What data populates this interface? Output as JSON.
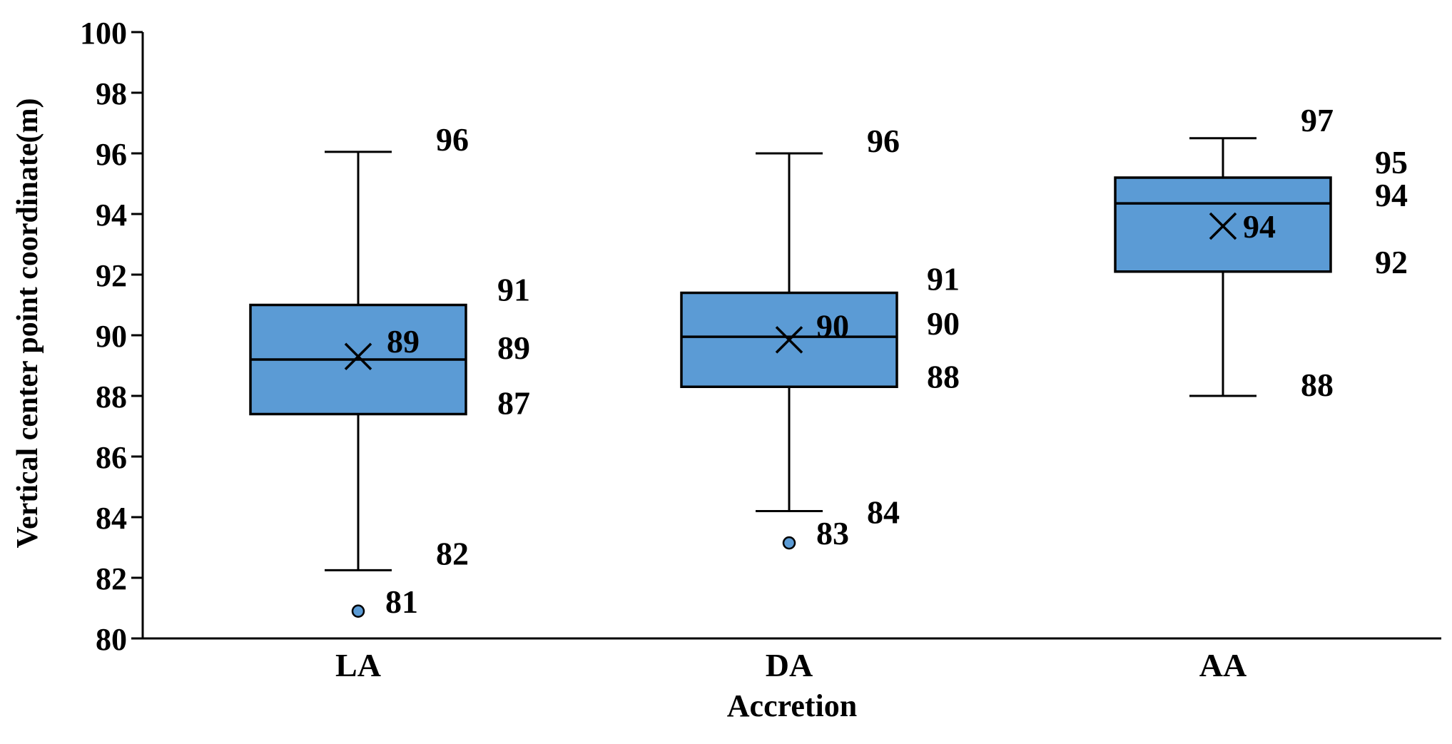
{
  "chart_data": {
    "type": "box",
    "title": "",
    "xlabel": "Accretion",
    "ylabel": "Vertical center point coordinate(m)",
    "ylim": [
      80,
      100
    ],
    "yticks": [
      "80",
      "82",
      "84",
      "86",
      "88",
      "90",
      "92",
      "94",
      "96",
      "98",
      "100"
    ],
    "box_color": "#5B9BD5",
    "grid": false,
    "categories": [
      "LA",
      "DA",
      "AA"
    ],
    "series": [
      {
        "category": "LA",
        "whisker_low": 82.25,
        "q1": 87.4,
        "median": 89.2,
        "q3": 91.0,
        "whisker_high": 96.05,
        "mean": 89.3,
        "outliers": [
          80.9
        ],
        "labels": {
          "whisker_high": "96",
          "q3": "91",
          "median": "89",
          "q1": "87",
          "mean": "89",
          "whisker_low": "82",
          "outliers": [
            "81"
          ]
        }
      },
      {
        "category": "DA",
        "whisker_low": 84.2,
        "q1": 88.3,
        "median": 89.95,
        "q3": 91.4,
        "whisker_high": 96.0,
        "mean": 89.85,
        "outliers": [
          83.15
        ],
        "labels": {
          "whisker_high": "96",
          "q3": "91",
          "median": "90",
          "q1": "88",
          "mean": "90",
          "whisker_low": "84",
          "outliers": [
            "83"
          ]
        }
      },
      {
        "category": "AA",
        "whisker_low": 88.0,
        "q1": 92.1,
        "median": 94.35,
        "q3": 95.2,
        "whisker_high": 96.5,
        "mean": 93.6,
        "outliers": [],
        "labels": {
          "whisker_high": "97",
          "q3": "95",
          "median": "94",
          "q1": "92",
          "mean": "94",
          "whisker_low": "88",
          "outliers": []
        }
      }
    ]
  }
}
